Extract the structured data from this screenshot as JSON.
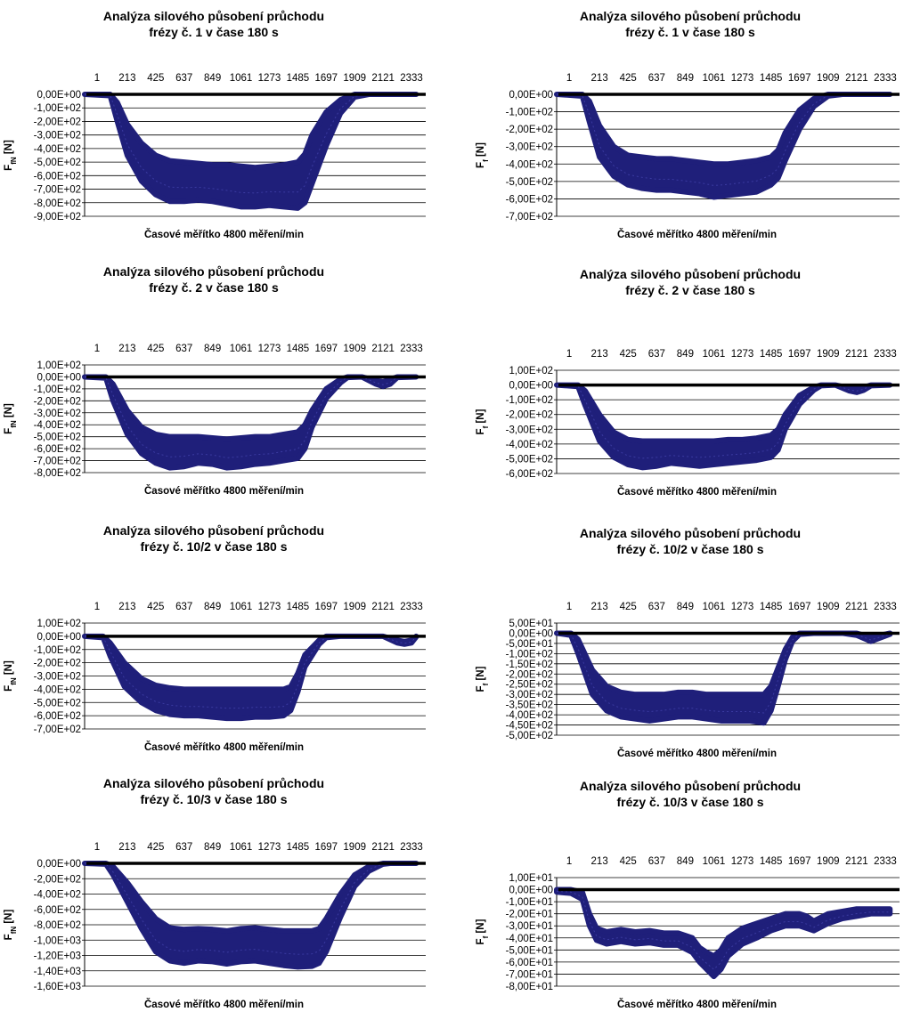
{
  "common": {
    "x_categories": [
      "1",
      "213",
      "425",
      "637",
      "849",
      "1061",
      "1273",
      "1485",
      "1697",
      "1909",
      "2121",
      "2333"
    ],
    "xlabel": "Časové měřítko 4800 měření/min",
    "xmax": 2400
  },
  "chart_data": [
    {
      "type": "line",
      "title_line1": "Analýza silového působení průchodu",
      "title_line2": "frézy č. 1 v čase 180 s",
      "ylabel": "F",
      "ylabel_sub": "fN",
      "ylabel_unit": " [N]",
      "yticks": [
        "0,00E+00",
        "-1,00E+02",
        "-2,00E+02",
        "-3,00E+02",
        "-4,00E+02",
        "-5,00E+02",
        "-6,00E+02",
        "-7,00E+02",
        "-8,00E+02",
        "-9,00E+02"
      ],
      "ylim": [
        -900,
        0
      ],
      "series_color": "#1f1f7a",
      "x": [
        0,
        180,
        230,
        300,
        400,
        500,
        600,
        700,
        800,
        900,
        1000,
        1100,
        1200,
        1300,
        1400,
        1500,
        1550,
        1600,
        1700,
        1800,
        1900,
        2000,
        2200,
        2333
      ],
      "upper": [
        0,
        0,
        -60,
        -220,
        -360,
        -450,
        -490,
        -500,
        -510,
        -520,
        -520,
        -530,
        -540,
        -530,
        -520,
        -500,
        -440,
        -300,
        -130,
        -40,
        0,
        0,
        0,
        0
      ],
      "lower": [
        0,
        -10,
        -200,
        -450,
        -640,
        -740,
        -790,
        -790,
        -780,
        -790,
        -810,
        -830,
        -830,
        -820,
        -830,
        -840,
        -800,
        -660,
        -380,
        -140,
        -20,
        0,
        0,
        0
      ]
    },
    {
      "type": "line",
      "title_line1": "Analýza silového působení průchodu",
      "title_line2": "frézy č. 1 v čase 180 s",
      "ylabel": "F",
      "ylabel_sub": "f",
      "ylabel_unit": " [N]",
      "yticks": [
        "0,00E+00",
        "-1,00E+02",
        "-2,00E+02",
        "-3,00E+02",
        "-4,00E+02",
        "-5,00E+02",
        "-6,00E+02",
        "-7,00E+02"
      ],
      "ylim": [
        -700,
        0
      ],
      "series_color": "#1f1f7a",
      "x": [
        0,
        180,
        230,
        300,
        400,
        500,
        600,
        700,
        800,
        900,
        1000,
        1100,
        1200,
        1300,
        1400,
        1500,
        1550,
        1600,
        1700,
        1800,
        1900,
        2000,
        2200,
        2333
      ],
      "upper": [
        0,
        0,
        -40,
        -180,
        -300,
        -350,
        -360,
        -370,
        -370,
        -380,
        -390,
        -400,
        -400,
        -390,
        -380,
        -360,
        -320,
        -220,
        -90,
        -25,
        0,
        0,
        0,
        0
      ],
      "lower": [
        0,
        -10,
        -160,
        -360,
        -470,
        -520,
        -540,
        -550,
        -550,
        -560,
        -570,
        -590,
        -580,
        -570,
        -560,
        -520,
        -480,
        -380,
        -200,
        -70,
        -10,
        0,
        0,
        0
      ]
    },
    {
      "type": "line",
      "title_line1": "Analýza silového působení průchodu",
      "title_line2": "frézy č. 2 v čase 180 s",
      "ylabel": "F",
      "ylabel_sub": "fN",
      "ylabel_unit": " [N]",
      "yticks": [
        "1,00E+02",
        "0,00E+00",
        "-1,00E+02",
        "-2,00E+02",
        "-3,00E+02",
        "-4,00E+02",
        "-5,00E+02",
        "-6,00E+02",
        "-7,00E+02",
        "-8,00E+02"
      ],
      "ylim": [
        -800,
        100
      ],
      "series_color": "#1f1f7a",
      "x": [
        0,
        150,
        200,
        300,
        400,
        500,
        600,
        700,
        800,
        900,
        1000,
        1100,
        1200,
        1300,
        1400,
        1500,
        1550,
        1600,
        1700,
        1800,
        1850,
        1950,
        2050,
        2100,
        2150,
        2200,
        2333
      ],
      "upper": [
        0,
        0,
        -60,
        -280,
        -420,
        -480,
        -500,
        -500,
        -500,
        -510,
        -520,
        -510,
        -500,
        -500,
        -480,
        -460,
        -400,
        -280,
        -100,
        -20,
        0,
        0,
        -30,
        -40,
        -20,
        0,
        0
      ],
      "lower": [
        0,
        -10,
        -200,
        -480,
        -640,
        -720,
        -760,
        -750,
        -720,
        -730,
        -760,
        -750,
        -730,
        -720,
        -700,
        -680,
        -600,
        -420,
        -180,
        -50,
        -5,
        0,
        -60,
        -80,
        -60,
        -5,
        0
      ]
    },
    {
      "type": "line",
      "title_line1": "Analýza silového působení průchodu",
      "title_line2": "frézy č. 2 v čase 180 s",
      "ylabel": "F",
      "ylabel_sub": "f",
      "ylabel_unit": " [N]",
      "yticks": [
        "1,00E+02",
        "0,00E+00",
        "-1,00E+02",
        "-2,00E+02",
        "-3,00E+02",
        "-4,00E+02",
        "-5,00E+02",
        "-6,00E+02"
      ],
      "ylim": [
        -600,
        100
      ],
      "series_color": "#1f1f7a",
      "x": [
        0,
        150,
        200,
        300,
        400,
        500,
        600,
        700,
        800,
        900,
        1000,
        1100,
        1200,
        1300,
        1400,
        1500,
        1550,
        1600,
        1700,
        1800,
        1850,
        1950,
        2050,
        2100,
        2150,
        2200,
        2333
      ],
      "upper": [
        0,
        0,
        -40,
        -200,
        -320,
        -370,
        -380,
        -380,
        -380,
        -380,
        -380,
        -380,
        -370,
        -370,
        -360,
        -340,
        -300,
        -200,
        -70,
        -15,
        0,
        0,
        -20,
        -25,
        -15,
        0,
        0
      ],
      "lower": [
        0,
        -10,
        -140,
        -380,
        -490,
        -540,
        -560,
        -550,
        -530,
        -540,
        -550,
        -540,
        -530,
        -520,
        -510,
        -490,
        -440,
        -300,
        -130,
        -35,
        -5,
        0,
        -40,
        -50,
        -35,
        -5,
        0
      ]
    },
    {
      "type": "line",
      "title_line1": "Analýza silového působení průchodu",
      "title_line2": "frézy č. 10/2 v čase 180 s",
      "ylabel": "F",
      "ylabel_sub": "fN",
      "ylabel_unit": " [N]",
      "yticks": [
        "1,00E+02",
        "0,00E+00",
        "-1,00E+02",
        "-2,00E+02",
        "-3,00E+02",
        "-4,00E+02",
        "-5,00E+02",
        "-6,00E+02",
        "-7,00E+02"
      ],
      "ylim": [
        -700,
        100
      ],
      "series_color": "#1f1f7a",
      "x": [
        0,
        130,
        180,
        280,
        400,
        500,
        600,
        700,
        800,
        900,
        1000,
        1100,
        1200,
        1300,
        1400,
        1450,
        1500,
        1550,
        1650,
        1700,
        1800,
        2100,
        2200,
        2250,
        2300,
        2333
      ],
      "upper": [
        0,
        0,
        -50,
        -200,
        -320,
        -370,
        -390,
        -400,
        -400,
        -400,
        -400,
        -400,
        -400,
        -400,
        -400,
        -380,
        -280,
        -140,
        -30,
        0,
        0,
        0,
        -30,
        -40,
        -30,
        0
      ],
      "lower": [
        0,
        -10,
        -150,
        -380,
        -500,
        -560,
        -590,
        -600,
        -600,
        -610,
        -620,
        -620,
        -610,
        -610,
        -600,
        -560,
        -420,
        -230,
        -60,
        -10,
        0,
        0,
        -50,
        -60,
        -50,
        -5
      ]
    },
    {
      "type": "line",
      "title_line1": "Analýza silového působení průchodu",
      "title_line2": "frézy č. 10/2 v čase 180 s",
      "ylabel": "F",
      "ylabel_sub": "f",
      "ylabel_unit": " [N]",
      "yticks": [
        "5,00E+01",
        "0,00E+00",
        "-5,00E+01",
        "-1,00E+02",
        "-1,50E+02",
        "-2,00E+02",
        "-2,50E+02",
        "-3,00E+02",
        "-3,50E+02",
        "-4,00E+02",
        "-4,50E+02",
        "-5,00E+02"
      ],
      "ylim": [
        -500,
        50
      ],
      "series_color": "#1f1f7a",
      "x": [
        0,
        100,
        150,
        250,
        350,
        450,
        550,
        650,
        750,
        850,
        950,
        1050,
        1150,
        1250,
        1350,
        1450,
        1500,
        1550,
        1600,
        1650,
        1700,
        1800,
        2000,
        2100,
        2200,
        2333
      ],
      "upper": [
        0,
        0,
        -30,
        -180,
        -260,
        -290,
        -300,
        -300,
        -300,
        -290,
        -290,
        -300,
        -300,
        -300,
        -300,
        -300,
        -260,
        -170,
        -80,
        -20,
        0,
        0,
        0,
        0,
        -20,
        0
      ],
      "lower": [
        0,
        -10,
        -100,
        -300,
        -380,
        -410,
        -420,
        -430,
        -420,
        -410,
        -410,
        -420,
        -430,
        -430,
        -430,
        -440,
        -380,
        -260,
        -130,
        -40,
        -5,
        0,
        0,
        -10,
        -40,
        -5
      ]
    },
    {
      "type": "line",
      "title_line1": "Analýza silového působení průchodu",
      "title_line2": "frézy č. 10/3 v čase 180 s",
      "ylabel": "F",
      "ylabel_sub": "fN",
      "ylabel_unit": " [N]",
      "yticks": [
        "0,00E+00",
        "-2,00E+02",
        "-4,00E+02",
        "-6,00E+02",
        "-8,00E+02",
        "-1,00E+03",
        "-1,20E+03",
        "-1,40E+03",
        "-1,60E+03"
      ],
      "ylim": [
        -1600,
        0
      ],
      "series_color": "#1f1f7a",
      "x": [
        0,
        150,
        200,
        300,
        400,
        500,
        600,
        700,
        800,
        900,
        1000,
        1100,
        1200,
        1300,
        1400,
        1500,
        1600,
        1650,
        1700,
        1800,
        1900,
        2000,
        2100,
        2150,
        2333
      ],
      "upper": [
        0,
        0,
        -40,
        -250,
        -500,
        -720,
        -840,
        -860,
        -850,
        -860,
        -880,
        -850,
        -840,
        -860,
        -880,
        -880,
        -880,
        -850,
        -720,
        -400,
        -150,
        -40,
        0,
        0,
        0
      ],
      "lower": [
        0,
        -10,
        -150,
        -500,
        -850,
        -1150,
        -1270,
        -1300,
        -1270,
        -1280,
        -1310,
        -1280,
        -1270,
        -1300,
        -1330,
        -1350,
        -1340,
        -1300,
        -1150,
        -700,
        -300,
        -100,
        -10,
        0,
        0
      ]
    },
    {
      "type": "line",
      "title_line1": "Analýza silového působení průchodu",
      "title_line2": "frézy č. 10/3 v čase 180 s",
      "ylabel": "F",
      "ylabel_sub": "f",
      "ylabel_unit": " [N]",
      "yticks": [
        "1,00E+01",
        "0,00E+00",
        "-1,00E+01",
        "-2,00E+01",
        "-3,00E+01",
        "-4,00E+01",
        "-5,00E+01",
        "-6,00E+01",
        "-7,00E+01",
        "-8,00E+01"
      ],
      "ylim": [
        -80,
        10
      ],
      "series_color": "#1f1f7a",
      "x": [
        0,
        100,
        180,
        230,
        280,
        350,
        450,
        550,
        650,
        750,
        850,
        950,
        1000,
        1050,
        1100,
        1150,
        1200,
        1300,
        1400,
        1500,
        1600,
        1700,
        1750,
        1800,
        1900,
        2000,
        2100,
        2200,
        2333
      ],
      "upper": [
        0,
        0,
        -2,
        -20,
        -32,
        -35,
        -33,
        -35,
        -34,
        -36,
        -36,
        -40,
        -48,
        -52,
        -55,
        -50,
        -40,
        -32,
        -28,
        -24,
        -20,
        -20,
        -22,
        -26,
        -20,
        -18,
        -16,
        -16,
        -16
      ],
      "lower": [
        -2,
        -3,
        -8,
        -30,
        -42,
        -45,
        -43,
        -45,
        -44,
        -46,
        -46,
        -52,
        -60,
        -66,
        -72,
        -66,
        -55,
        -45,
        -40,
        -34,
        -30,
        -30,
        -32,
        -34,
        -28,
        -24,
        -22,
        -20,
        -20
      ]
    }
  ]
}
